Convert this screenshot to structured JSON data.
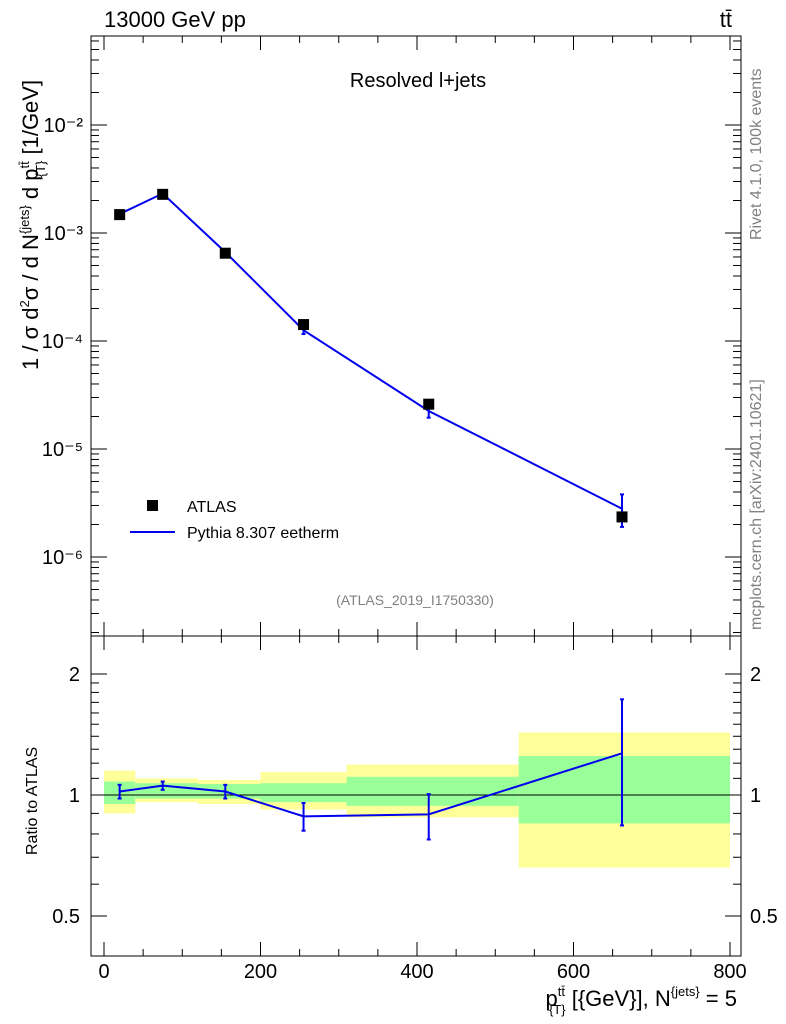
{
  "header": {
    "energy_label": "13000 GeV pp",
    "process_label": "tt̄"
  },
  "side": {
    "rivet_label": "Rivet 4.1.0,  100k events",
    "mcplots_label": "mcplots.cern.ch [arXiv:2401.10621]"
  },
  "chart_data": {
    "type": "line",
    "title": "Resolved l+jets",
    "analysis_id": "(ATLAS_2019_I1750330)",
    "ylabel": "1 / σ d²σ /  d N^{jets} d p_{T}^{tt̄} [1/GeV]",
    "xlabel": "p_{T}^{tt̄} [{GeV}], N^{jets} = 5",
    "ratio_ylabel": "Ratio to ATLAS",
    "xlim": [
      -20,
      810
    ],
    "ylim": [
      2e-07,
      0.1
    ],
    "ratio_ylim": [
      0.4,
      2.3
    ],
    "y_scale": "log",
    "x_ticks": [
      0,
      200,
      400,
      600,
      800
    ],
    "y_tick_labels": [
      "10⁻²",
      "10⁻³",
      "10⁻⁴",
      "10⁻⁵",
      "10⁻⁶"
    ],
    "ratio_tick_labels": [
      "2",
      "1",
      "0.5"
    ],
    "legend": {
      "position": "bottom-left",
      "entries": [
        {
          "label": "ATLAS",
          "marker": "square",
          "color": "#000000"
        },
        {
          "label": "Pythia 8.307 eetherm",
          "marker": "line",
          "color": "#0000ee"
        }
      ]
    },
    "bin_edges": [
      0,
      40,
      120,
      200,
      310,
      530,
      800
    ],
    "series": [
      {
        "name": "ATLAS",
        "x": [
          20,
          75,
          155,
          255,
          415,
          662
        ],
        "y": [
          0.00148,
          0.00228,
          0.00065,
          0.000142,
          2.6e-05,
          2.35e-06
        ]
      },
      {
        "name": "Pythia 8.307 eetherm",
        "x": [
          20,
          75,
          155,
          255,
          415,
          662
        ],
        "y": [
          0.0015,
          0.00232,
          0.000665,
          0.000126,
          2.25e-05,
          2.8e-06
        ],
        "yerr_low": [
          3e-05,
          5e-05,
          2e-05,
          1e-05,
          3e-06,
          9e-07
        ],
        "yerr_high": [
          3e-05,
          5e-05,
          2e-05,
          1e-05,
          3e-06,
          1e-06
        ]
      }
    ],
    "ratio": {
      "mc_values": [
        1.02,
        1.055,
        1.02,
        0.885,
        0.895,
        1.27
      ],
      "mc_err_low": [
        0.04,
        0.025,
        0.04,
        0.07,
        0.12,
        0.43
      ],
      "mc_err_high": [
        0.04,
        0.025,
        0.04,
        0.07,
        0.11,
        0.46
      ],
      "band_inner": [
        [
          0.95,
          1.08
        ],
        [
          0.98,
          1.07
        ],
        [
          0.98,
          1.065
        ],
        [
          0.96,
          1.07
        ],
        [
          0.94,
          1.11
        ],
        [
          0.85,
          1.25
        ]
      ],
      "band_outer": [
        [
          0.9,
          1.15
        ],
        [
          0.96,
          1.1
        ],
        [
          0.95,
          1.09
        ],
        [
          0.92,
          1.14
        ],
        [
          0.88,
          1.19
        ],
        [
          0.66,
          1.43
        ]
      ]
    }
  }
}
